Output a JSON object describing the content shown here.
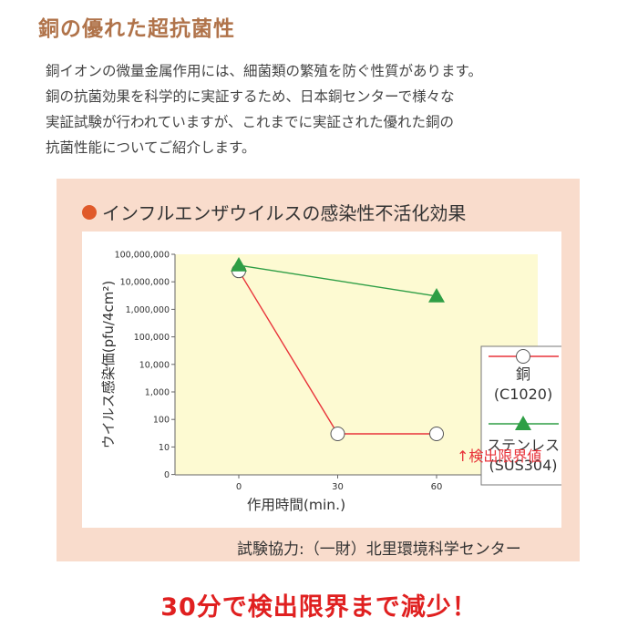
{
  "heading": "銅の優れた超抗菌性",
  "intro_lines": [
    "銅イオンの微量金属作用には、細菌類の繁殖を防ぐ性質があります。",
    "銅の抗菌効果を科学的に実証するため、日本銅センターで様々な",
    "実証試験が行われていますが、これまでに実証された優れた銅の",
    "抗菌性能についてご紹介します。"
  ],
  "panel": {
    "title": "インフルエンザウイルスの感染性不活化効果",
    "credit": "試験協力:（一財）北里環境科学センター"
  },
  "bottom_message": "30分で検出限界まで減少！",
  "colors": {
    "copper": "#e8333a",
    "stainless": "#2e9e45",
    "plot_bg": "#fdfad2",
    "accent": "#e05a2a"
  },
  "chart_data": {
    "type": "line",
    "ylabel": "ウイルス感染価(pfu/4cm²)",
    "xlabel": "作用時間(min.)",
    "y_scale": "log",
    "y_ticks": [
      "100,000,000",
      "10,000,000",
      "1,000,000",
      "100,000",
      "10,000",
      "1,000",
      "100",
      "10",
      "0"
    ],
    "x_ticks": [
      "0",
      "30",
      "60"
    ],
    "series": [
      {
        "name": "銅",
        "sub": "(C1020)",
        "marker": "circle",
        "x": [
          0,
          30,
          60
        ],
        "y": [
          25000000,
          30,
          30
        ]
      },
      {
        "name": "ステンレス",
        "sub": "(SUS304)",
        "marker": "triangle",
        "x": [
          0,
          60
        ],
        "y": [
          40000000,
          3000000
        ]
      }
    ],
    "annotation": "↑検出限界値"
  }
}
